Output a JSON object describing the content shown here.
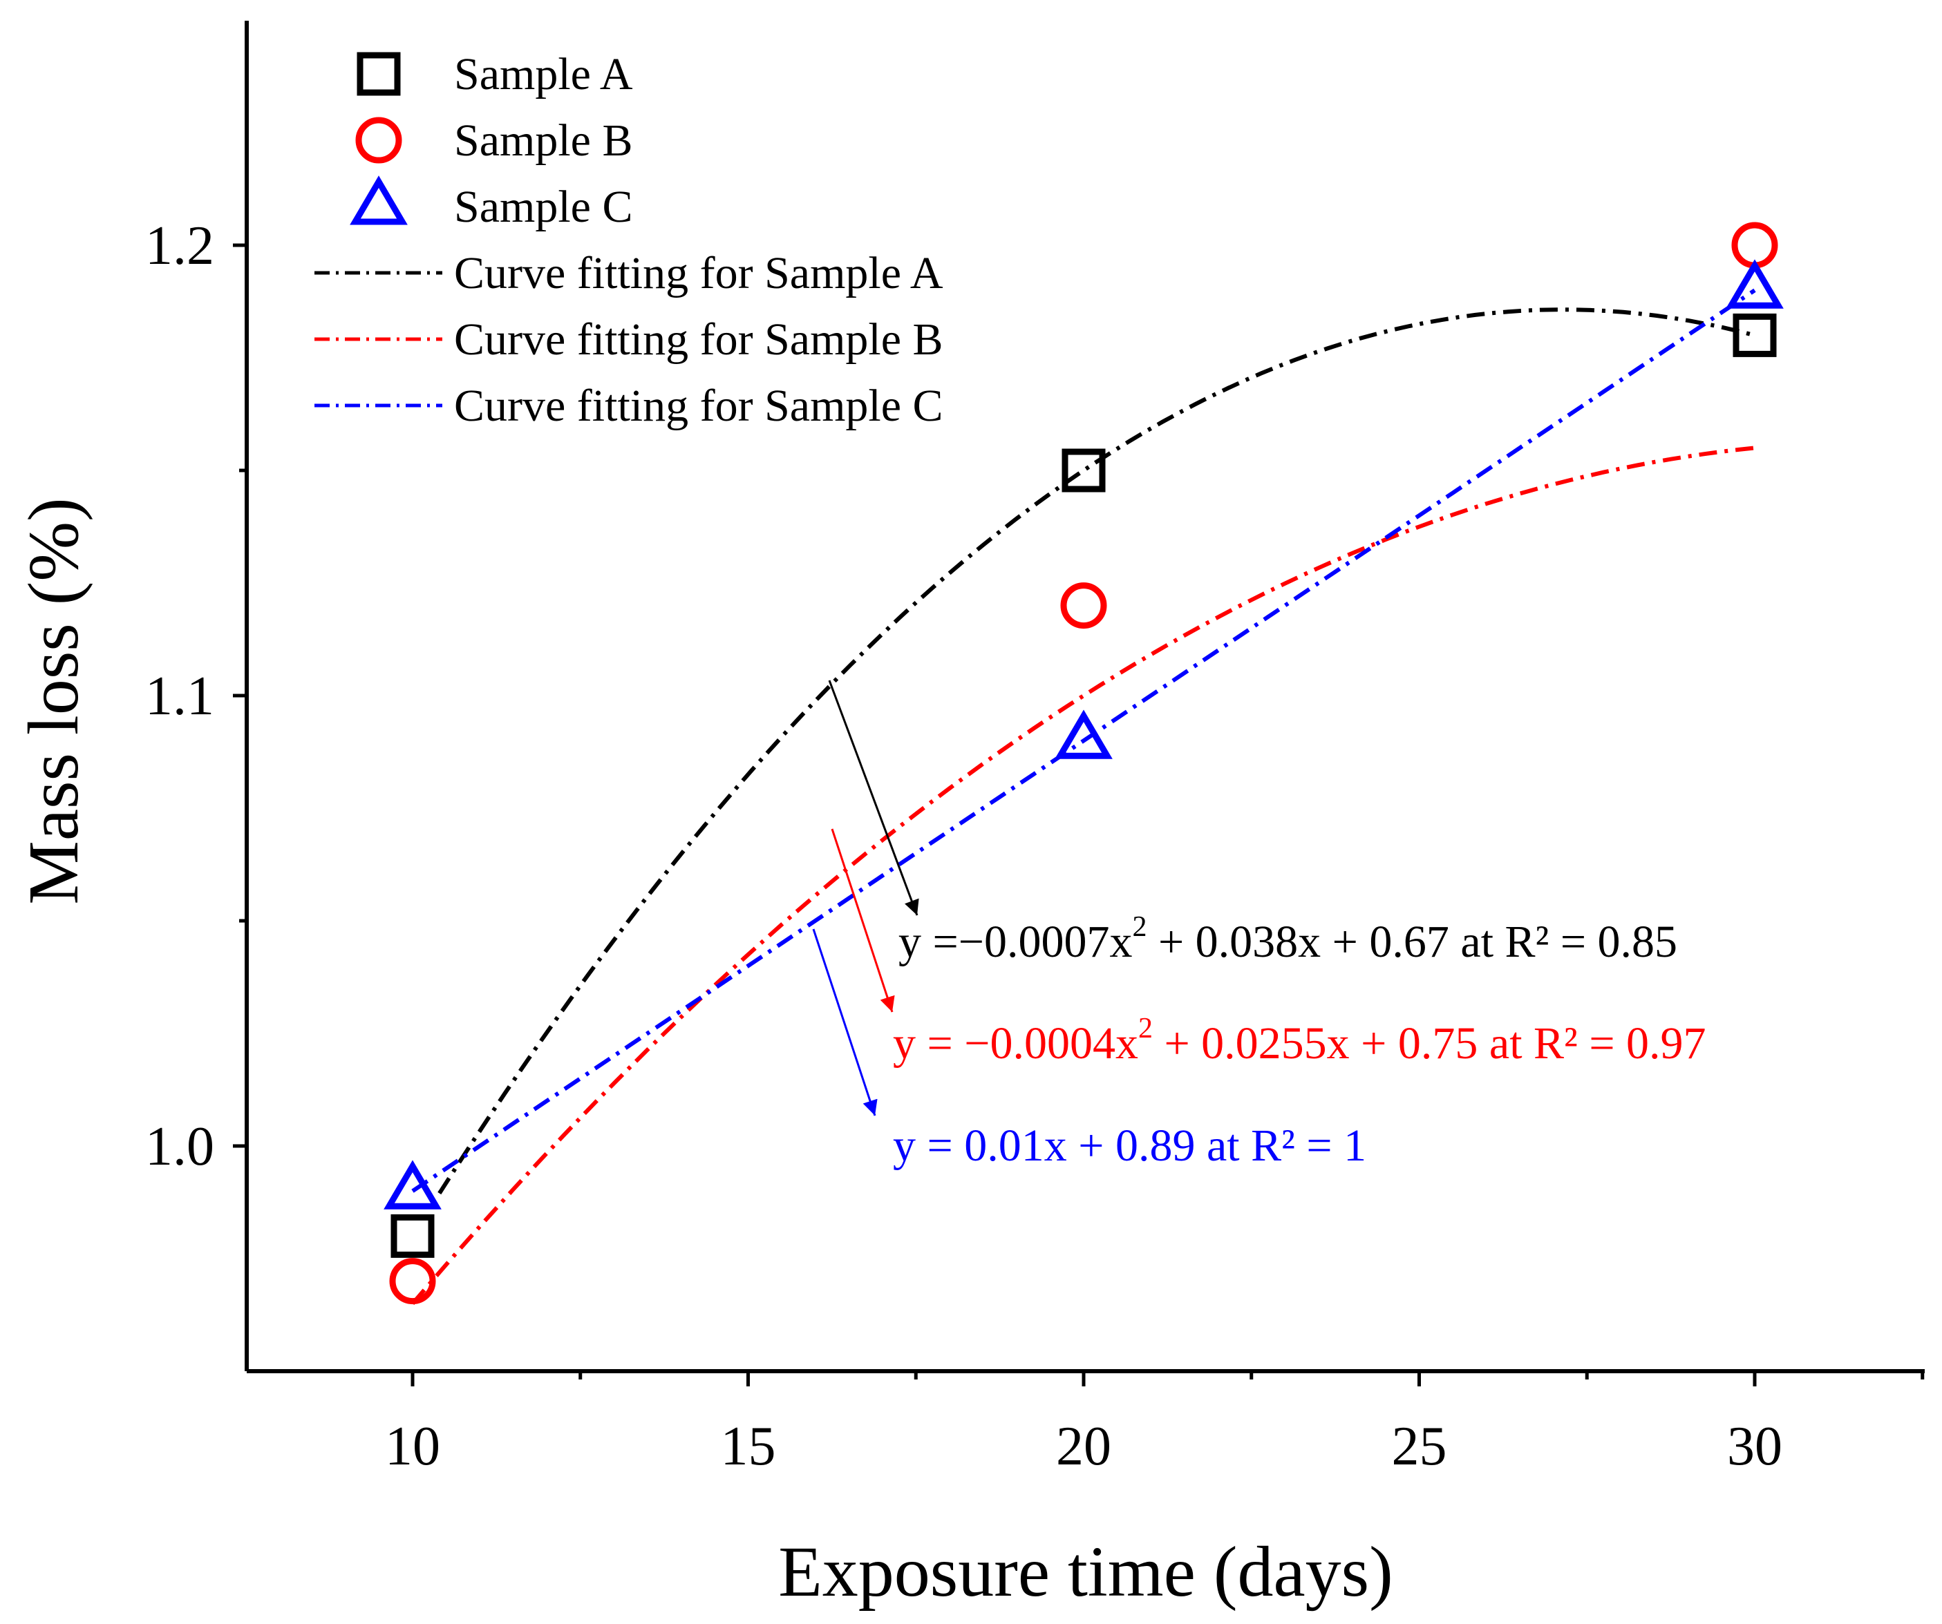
{
  "chart_data": {
    "type": "scatter",
    "xlabel": "Exposure time (days)",
    "ylabel": "Mass loss (%)",
    "xlim": [
      7.5,
      32.5
    ],
    "ylim": [
      0.95,
      1.25
    ],
    "xticks": [
      10,
      15,
      20,
      25,
      30
    ],
    "xtick_labels": [
      "10",
      "15",
      "20",
      "25",
      "30"
    ],
    "yticks": [
      1.0,
      1.1,
      1.2
    ],
    "ytick_labels": [
      "1.0",
      "1.1",
      "1.2"
    ],
    "x_minor_step": 2.5,
    "y_minor_step": 0.05,
    "legend_position": "top-left",
    "series": [
      {
        "name": "Sample A",
        "marker": "square",
        "color": "#000000",
        "x": [
          10,
          20,
          30
        ],
        "y": [
          0.98,
          1.15,
          1.18
        ]
      },
      {
        "name": "Sample B",
        "marker": "circle",
        "color": "#ff0000",
        "x": [
          10,
          20,
          30
        ],
        "y": [
          0.97,
          1.12,
          1.2
        ]
      },
      {
        "name": "Sample C",
        "marker": "triangle",
        "color": "#0000ff",
        "x": [
          10,
          20,
          30
        ],
        "y": [
          0.99,
          1.09,
          1.19
        ]
      }
    ],
    "fits": [
      {
        "name": "Curve fitting for Sample A",
        "color": "#000000",
        "coef": [
          -0.0007,
          0.038,
          0.67
        ],
        "x_range": [
          10.4,
          30
        ]
      },
      {
        "name": "Curve fitting for Sample B",
        "color": "#ff0000",
        "coef": [
          -0.0004,
          0.0255,
          0.75
        ],
        "x_range": [
          10,
          30
        ]
      },
      {
        "name": "Curve fitting for Sample C",
        "color": "#0000ff",
        "coef": [
          0,
          0.01,
          0.89
        ],
        "x_range": [
          10,
          30
        ]
      }
    ],
    "annotations": [
      {
        "color": "#000000",
        "eq_pre": "y =−0.0007x",
        "eq_sup": "2",
        "eq_post": " + 0.038x + 0.67 at R² = 0.85"
      },
      {
        "color": "#ff0000",
        "eq_pre": "y = −0.0004x",
        "eq_sup": "2",
        "eq_post": " + 0.0255x + 0.75 at R² = 0.97"
      },
      {
        "color": "#0000ff",
        "eq_pre": "y = 0.01x + 0.89 at R² = 1",
        "eq_sup": "",
        "eq_post": ""
      }
    ]
  }
}
